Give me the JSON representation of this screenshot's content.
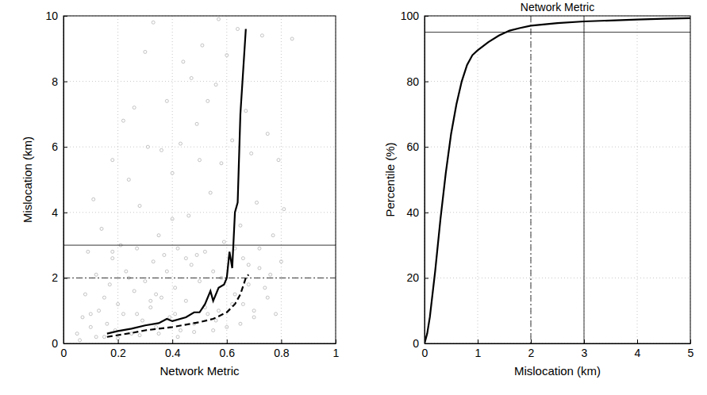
{
  "chart_data": [
    {
      "type": "scatter",
      "xlabel": "Network Metric",
      "ylabel": "Mislocation (km)",
      "xlim": [
        0,
        1
      ],
      "ylim": [
        0,
        10
      ],
      "xticks": [
        0,
        0.2,
        0.4,
        0.6,
        0.8,
        1
      ],
      "yticks": [
        0,
        2,
        4,
        6,
        8,
        10
      ],
      "grid": true,
      "series": [
        {
          "type": "scatter",
          "color": "#b4b4b4",
          "marker": "circle",
          "x": [
            0.05,
            0.07,
            0.08,
            0.1,
            0.12,
            0.13,
            0.15,
            0.06,
            0.09,
            0.11,
            0.14,
            0.16,
            0.17,
            0.18,
            0.19,
            0.2,
            0.21,
            0.22,
            0.23,
            0.24,
            0.25,
            0.26,
            0.27,
            0.28,
            0.29,
            0.3,
            0.31,
            0.32,
            0.33,
            0.34,
            0.35,
            0.36,
            0.37,
            0.38,
            0.39,
            0.4,
            0.41,
            0.42,
            0.43,
            0.44,
            0.45,
            0.46,
            0.47,
            0.48,
            0.49,
            0.5,
            0.51,
            0.52,
            0.53,
            0.54,
            0.55,
            0.56,
            0.57,
            0.58,
            0.59,
            0.6,
            0.61,
            0.62,
            0.63,
            0.64,
            0.65,
            0.66,
            0.67,
            0.68,
            0.69,
            0.7,
            0.71,
            0.72,
            0.73,
            0.74,
            0.75,
            0.76,
            0.77,
            0.78,
            0.79,
            0.8,
            0.81,
            0.84,
            0.18,
            0.22,
            0.26,
            0.3,
            0.33,
            0.36,
            0.4,
            0.43,
            0.47,
            0.5,
            0.53,
            0.57,
            0.12,
            0.2,
            0.28,
            0.35,
            0.42,
            0.48,
            0.55,
            0.6,
            0.65,
            0.7,
            0.15,
            0.24,
            0.32,
            0.38,
            0.45,
            0.52,
            0.58,
            0.63,
            0.68,
            0.72,
            0.1,
            0.18,
            0.27,
            0.34,
            0.41,
            0.49,
            0.56,
            0.62,
            0.66,
            0.75
          ],
          "values": [
            0.3,
            0.8,
            1.5,
            0.5,
            2.1,
            1.0,
            0.2,
            0.1,
            2.8,
            4.4,
            3.5,
            0.6,
            1.8,
            2.6,
            0.4,
            1.2,
            3.0,
            0.9,
            2.2,
            5.0,
            0.3,
            1.6,
            2.9,
            4.2,
            0.7,
            1.9,
            6.0,
            1.1,
            2.5,
            0.5,
            3.3,
            1.4,
            2.7,
            7.4,
            0.8,
            5.2,
            1.7,
            2.9,
            0.4,
            8.6,
            1.3,
            3.9,
            2.4,
            0.6,
            6.7,
            1.9,
            9.1,
            2.8,
            0.9,
            4.6,
            2.2,
            7.9,
            1.0,
            5.5,
            3.1,
            8.8,
            2.6,
            6.2,
            1.5,
            9.6,
            3.6,
            1.2,
            7.1,
            2.4,
            5.8,
            0.8,
            4.3,
            2.9,
            9.4,
            1.7,
            6.4,
            2.1,
            3.3,
            0.9,
            5.6,
            2.5,
            4.1,
            9.3,
            5.6,
            6.8,
            7.2,
            8.9,
            9.8,
            5.9,
            3.8,
            6.1,
            8.1,
            5.6,
            7.4,
            9.9,
            0.2,
            0.15,
            0.25,
            0.3,
            0.2,
            0.35,
            0.4,
            0.5,
            0.6,
            1.0,
            1.4,
            2.0,
            1.3,
            2.2,
            2.6,
            1.1,
            2.0,
            2.9,
            1.8,
            2.3,
            0.9,
            2.8,
            0.9,
            1.5,
            0.9,
            2.7,
            0.7,
            1.2,
            2.6,
            1.4
          ]
        },
        {
          "type": "line",
          "color": "#000000",
          "line_style": "solid",
          "x": [
            0.16,
            0.2,
            0.25,
            0.3,
            0.35,
            0.38,
            0.4,
            0.45,
            0.48,
            0.5,
            0.52,
            0.54,
            0.55,
            0.57,
            0.59,
            0.6,
            0.61,
            0.62,
            0.63,
            0.64,
            0.65,
            0.66,
            0.67
          ],
          "values": [
            0.3,
            0.38,
            0.45,
            0.55,
            0.62,
            0.75,
            0.68,
            0.8,
            0.95,
            0.95,
            1.2,
            1.6,
            1.3,
            1.7,
            1.8,
            2.0,
            2.8,
            2.3,
            4.0,
            4.3,
            7.0,
            8.3,
            9.6
          ]
        },
        {
          "type": "line",
          "color": "#000000",
          "line_style": "dashed",
          "x": [
            0.16,
            0.25,
            0.3,
            0.4,
            0.5,
            0.55,
            0.6,
            0.63,
            0.65,
            0.67,
            0.68
          ],
          "values": [
            0.2,
            0.32,
            0.4,
            0.5,
            0.65,
            0.75,
            0.95,
            1.2,
            1.5,
            2.0,
            2.1
          ]
        }
      ],
      "hlines": [
        {
          "value": 3,
          "line_style": "solid"
        },
        {
          "value": 2,
          "line_style": "dashdot"
        }
      ]
    },
    {
      "type": "line",
      "title": "Network Metric",
      "xlabel": "Mislocation (km)",
      "ylabel": "Percentile (%)",
      "xlim": [
        0,
        5
      ],
      "ylim": [
        0,
        100
      ],
      "xticks": [
        0,
        1,
        2,
        3,
        4,
        5
      ],
      "yticks": [
        0,
        20,
        40,
        60,
        80,
        100
      ],
      "grid": true,
      "series": [
        {
          "type": "line",
          "color": "#000000",
          "line_style": "solid",
          "x": [
            0,
            0.05,
            0.1,
            0.2,
            0.3,
            0.4,
            0.5,
            0.6,
            0.7,
            0.8,
            0.9,
            1.0,
            1.2,
            1.4,
            1.6,
            1.8,
            2.0,
            2.5,
            3,
            3.5,
            4,
            4.5,
            5
          ],
          "values": [
            0,
            3,
            8,
            22,
            38,
            52,
            64,
            73,
            80,
            85,
            88,
            89.5,
            92,
            94,
            95.5,
            96.3,
            97,
            97.8,
            98.3,
            98.6,
            98.9,
            99.1,
            99.3
          ]
        }
      ],
      "hlines": [
        {
          "value": 95,
          "line_style": "solid"
        }
      ],
      "vlines": [
        {
          "value": 2,
          "line_style": "dashdot"
        },
        {
          "value": 3,
          "line_style": "solid"
        }
      ]
    }
  ]
}
